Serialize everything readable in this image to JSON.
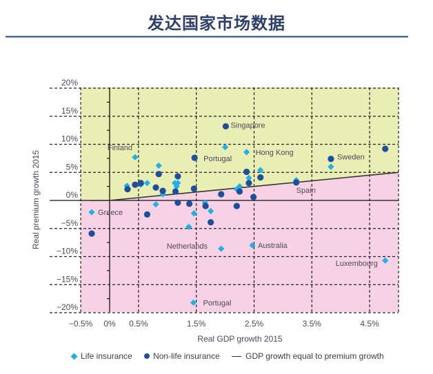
{
  "header": {
    "title": "发达国家市场数据"
  },
  "colors": {
    "title": "#2D3F6B",
    "life": "#1EB0EA",
    "nonlife": "#1F4F9C",
    "above_region": "#E9EEB4",
    "below_region": "#F6D2E4",
    "grid": "#222222",
    "equality_line": "#333333"
  },
  "legend": {
    "life": "Life insurance",
    "nonlife": "Non-life insurance",
    "line": "GDP growth equal to premium growth"
  },
  "chart_data": {
    "type": "scatter",
    "title": "",
    "xlabel": "Real GDP growth 2015",
    "ylabel": "Real premium growth 2015",
    "xlim": [
      -0.5,
      5.0
    ],
    "ylim": [
      -20,
      20
    ],
    "x_ticks": [
      -0.5,
      0,
      0.5,
      1.5,
      2.5,
      3.5,
      4.5
    ],
    "x_tick_labels": [
      "−0.5%",
      "0%",
      "0.5%",
      "1.5%",
      "2.5%",
      "3.5%",
      "4.5%"
    ],
    "x_gridlines": [
      -0.5,
      0.5,
      1.5,
      2.5,
      3.5,
      4.5,
      5.0
    ],
    "y_ticks": [
      20,
      15,
      10,
      5,
      0,
      -5,
      -10,
      -15,
      -20
    ],
    "y_tick_labels": [
      "20%",
      "15%",
      "10%",
      "5%",
      "0%",
      "−5%",
      "−10%",
      "−15%",
      "−20%"
    ],
    "grid": true,
    "legend_position": "bottom",
    "reference_line": {
      "name": "GDP growth equal to premium growth",
      "points": [
        [
          -0.35,
          0
        ],
        [
          0,
          0
        ],
        [
          5.0,
          5.0
        ]
      ]
    },
    "regions": [
      {
        "name": "premium growth above GDP growth",
        "color": "above"
      },
      {
        "name": "premium growth below GDP growth",
        "color": "below"
      }
    ],
    "series": [
      {
        "name": "Life insurance",
        "marker": "diamond",
        "points": [
          {
            "x": 0.44,
            "y": 7.7,
            "label": "Finland"
          },
          {
            "x": 0.85,
            "y": 6.2
          },
          {
            "x": 0.3,
            "y": 2.6
          },
          {
            "x": 0.54,
            "y": 2.8
          },
          {
            "x": 0.65,
            "y": 3.1
          },
          {
            "x": 0.92,
            "y": 1.1
          },
          {
            "x": 1.13,
            "y": 3.1
          },
          {
            "x": 1.18,
            "y": 3.1
          },
          {
            "x": 1.16,
            "y": 2.5
          },
          {
            "x": 0.8,
            "y": -0.7
          },
          {
            "x": 1.46,
            "y": -2.3
          },
          {
            "x": 1.37,
            "y": -4.7
          },
          {
            "x": 1.65,
            "y": -0.4
          },
          {
            "x": 1.75,
            "y": -1.9
          },
          {
            "x": 2.0,
            "y": 9.5
          },
          {
            "x": 2.37,
            "y": 8.6,
            "label": "Hong Kong"
          },
          {
            "x": 2.2,
            "y": 2.0
          },
          {
            "x": 2.25,
            "y": 2.5
          },
          {
            "x": 2.41,
            "y": 4.0
          },
          {
            "x": 2.61,
            "y": 5.4
          },
          {
            "x": 3.83,
            "y": 6.0
          },
          {
            "x": 3.23,
            "y": 3.6
          },
          {
            "x": -0.31,
            "y": -2.1,
            "label": "Greece"
          },
          {
            "x": 1.93,
            "y": -8.6,
            "label": "Netherlands"
          },
          {
            "x": 2.47,
            "y": -8.0,
            "label": "Australia"
          },
          {
            "x": 1.45,
            "y": -18.2,
            "label": "Portugal"
          },
          {
            "x": 4.77,
            "y": -10.7,
            "label": "Luxembourg"
          }
        ]
      },
      {
        "name": "Non-life insurance",
        "marker": "circle",
        "points": [
          {
            "x": 1.47,
            "y": 7.6,
            "label": "Portugal"
          },
          {
            "x": 2.01,
            "y": 13.2,
            "label": "Singapore"
          },
          {
            "x": 0.85,
            "y": 4.7
          },
          {
            "x": 1.18,
            "y": 4.3
          },
          {
            "x": 0.31,
            "y": 2.0
          },
          {
            "x": 0.44,
            "y": 2.8
          },
          {
            "x": 0.54,
            "y": 3.1
          },
          {
            "x": 0.8,
            "y": 2.3
          },
          {
            "x": 0.92,
            "y": 1.7
          },
          {
            "x": 1.14,
            "y": 1.6
          },
          {
            "x": 1.46,
            "y": 2.1
          },
          {
            "x": 1.18,
            "y": -0.4
          },
          {
            "x": 1.38,
            "y": -0.6
          },
          {
            "x": 0.65,
            "y": -2.5
          },
          {
            "x": 1.66,
            "y": -1.0
          },
          {
            "x": 1.75,
            "y": -3.9
          },
          {
            "x": 1.93,
            "y": 1.1
          },
          {
            "x": 2.2,
            "y": -1.0
          },
          {
            "x": 2.25,
            "y": 1.6
          },
          {
            "x": 2.37,
            "y": 5.1
          },
          {
            "x": 2.41,
            "y": 3.1
          },
          {
            "x": 2.61,
            "y": 4.1
          },
          {
            "x": 2.49,
            "y": 0.6
          },
          {
            "x": 3.83,
            "y": 7.4,
            "label": "Sweden"
          },
          {
            "x": 4.77,
            "y": 9.2
          },
          {
            "x": 3.23,
            "y": 3.2,
            "label": "Spain"
          },
          {
            "x": -0.31,
            "y": -5.9
          }
        ]
      }
    ]
  }
}
